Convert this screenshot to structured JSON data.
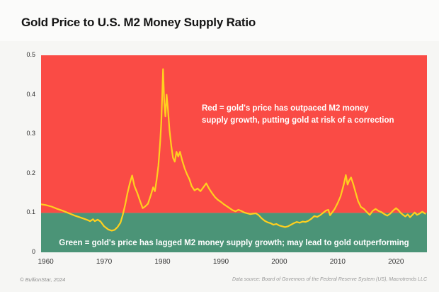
{
  "header": {
    "title": "Gold Price to U.S. M2 Money Supply Ratio"
  },
  "footer": {
    "copyright": "© BullionStar, 2024",
    "source": "Data source: Board of Governors of the Federal Reserve System (US), Macrotrends LLC"
  },
  "colors": {
    "red_zone": "#fa4b45",
    "green_zone": "#4b9477",
    "line": "#ffd01e",
    "background": "#f6f6f4"
  },
  "chart_data": {
    "type": "line",
    "title": "Gold Price to U.S. M2 Money Supply Ratio",
    "xlabel": "",
    "ylabel": "",
    "x_range": [
      1959.2,
      2025.3
    ],
    "y_range": [
      0,
      0.5
    ],
    "grid": false,
    "legend": "none",
    "threshold": 0.1,
    "x_ticks": [
      {
        "v": 1960,
        "label": "1960"
      },
      {
        "v": 1970,
        "label": "1970"
      },
      {
        "v": 1980,
        "label": "1980"
      },
      {
        "v": 1990,
        "label": "1990"
      },
      {
        "v": 2000,
        "label": "2000"
      },
      {
        "v": 2010,
        "label": "2010"
      },
      {
        "v": 2020,
        "label": "2020"
      }
    ],
    "y_ticks": [
      {
        "v": 0,
        "label": "0"
      },
      {
        "v": 0.1,
        "label": "0.1"
      },
      {
        "v": 0.2,
        "label": "0.2"
      },
      {
        "v": 0.3,
        "label": "0.3"
      },
      {
        "v": 0.4,
        "label": "0.4"
      },
      {
        "v": 0.5,
        "label": "0.5"
      }
    ],
    "regions": [
      {
        "name": "red-zone",
        "color": "#fa4b45",
        "from": 0.1,
        "to": 0.5,
        "annotation_line1": "Red = gold's price has outpaced M2 money",
        "annotation_line2": "supply growth, putting gold at risk of a correction"
      },
      {
        "name": "green-zone",
        "color": "#4b9477",
        "from": 0,
        "to": 0.1,
        "annotation": "Green = gold's price has lagged M2 money supply growth; may lead to gold outperforming"
      }
    ],
    "series": [
      {
        "name": "gold-to-m2-ratio",
        "color": "#ffd01e",
        "stroke_width": 2.2,
        "points": [
          [
            1959.2,
            0.122
          ],
          [
            1960,
            0.12
          ],
          [
            1961,
            0.116
          ],
          [
            1962,
            0.11
          ],
          [
            1963,
            0.105
          ],
          [
            1964,
            0.099
          ],
          [
            1965,
            0.093
          ],
          [
            1966,
            0.088
          ],
          [
            1967,
            0.083
          ],
          [
            1967.6,
            0.079
          ],
          [
            1968.1,
            0.084
          ],
          [
            1968.4,
            0.079
          ],
          [
            1968.9,
            0.083
          ],
          [
            1969.4,
            0.078
          ],
          [
            1970,
            0.066
          ],
          [
            1970.7,
            0.058
          ],
          [
            1971.3,
            0.055
          ],
          [
            1971.8,
            0.057
          ],
          [
            1972.3,
            0.064
          ],
          [
            1972.8,
            0.075
          ],
          [
            1973.2,
            0.095
          ],
          [
            1973.6,
            0.12
          ],
          [
            1974,
            0.15
          ],
          [
            1974.4,
            0.175
          ],
          [
            1974.8,
            0.195
          ],
          [
            1975.2,
            0.168
          ],
          [
            1975.7,
            0.15
          ],
          [
            1976.2,
            0.128
          ],
          [
            1976.6,
            0.112
          ],
          [
            1977,
            0.116
          ],
          [
            1977.5,
            0.123
          ],
          [
            1978,
            0.145
          ],
          [
            1978.4,
            0.165
          ],
          [
            1978.7,
            0.155
          ],
          [
            1979,
            0.185
          ],
          [
            1979.3,
            0.22
          ],
          [
            1979.6,
            0.28
          ],
          [
            1979.8,
            0.33
          ],
          [
            1980,
            0.42
          ],
          [
            1980.1,
            0.465
          ],
          [
            1980.3,
            0.38
          ],
          [
            1980.5,
            0.345
          ],
          [
            1980.7,
            0.4
          ],
          [
            1980.9,
            0.37
          ],
          [
            1981.2,
            0.31
          ],
          [
            1981.5,
            0.27
          ],
          [
            1981.8,
            0.24
          ],
          [
            1982.1,
            0.23
          ],
          [
            1982.4,
            0.255
          ],
          [
            1982.7,
            0.243
          ],
          [
            1983,
            0.255
          ],
          [
            1983.4,
            0.232
          ],
          [
            1983.8,
            0.213
          ],
          [
            1984.2,
            0.198
          ],
          [
            1984.6,
            0.186
          ],
          [
            1985,
            0.168
          ],
          [
            1985.5,
            0.157
          ],
          [
            1986,
            0.162
          ],
          [
            1986.5,
            0.155
          ],
          [
            1987,
            0.165
          ],
          [
            1987.5,
            0.175
          ],
          [
            1988,
            0.161
          ],
          [
            1988.5,
            0.15
          ],
          [
            1989,
            0.14
          ],
          [
            1989.5,
            0.133
          ],
          [
            1990,
            0.128
          ],
          [
            1990.5,
            0.122
          ],
          [
            1991,
            0.117
          ],
          [
            1991.5,
            0.112
          ],
          [
            1992,
            0.107
          ],
          [
            1992.5,
            0.104
          ],
          [
            1993,
            0.108
          ],
          [
            1993.5,
            0.105
          ],
          [
            1994,
            0.101
          ],
          [
            1994.5,
            0.099
          ],
          [
            1995,
            0.097
          ],
          [
            1995.5,
            0.098
          ],
          [
            1996,
            0.099
          ],
          [
            1996.5,
            0.094
          ],
          [
            1997,
            0.086
          ],
          [
            1997.5,
            0.08
          ],
          [
            1998,
            0.076
          ],
          [
            1998.5,
            0.074
          ],
          [
            1999,
            0.07
          ],
          [
            1999.5,
            0.072
          ],
          [
            2000,
            0.068
          ],
          [
            2000.5,
            0.066
          ],
          [
            2001,
            0.064
          ],
          [
            2001.5,
            0.066
          ],
          [
            2002,
            0.07
          ],
          [
            2002.5,
            0.074
          ],
          [
            2003,
            0.077
          ],
          [
            2003.5,
            0.075
          ],
          [
            2004,
            0.078
          ],
          [
            2004.5,
            0.077
          ],
          [
            2005,
            0.08
          ],
          [
            2005.5,
            0.085
          ],
          [
            2006,
            0.092
          ],
          [
            2006.5,
            0.09
          ],
          [
            2007,
            0.094
          ],
          [
            2007.5,
            0.1
          ],
          [
            2008,
            0.106
          ],
          [
            2008.4,
            0.108
          ],
          [
            2008.7,
            0.094
          ],
          [
            2009,
            0.1
          ],
          [
            2009.5,
            0.11
          ],
          [
            2010,
            0.125
          ],
          [
            2010.5,
            0.142
          ],
          [
            2010.8,
            0.158
          ],
          [
            2011.1,
            0.175
          ],
          [
            2011.4,
            0.196
          ],
          [
            2011.7,
            0.172
          ],
          [
            2012,
            0.183
          ],
          [
            2012.3,
            0.19
          ],
          [
            2012.7,
            0.172
          ],
          [
            2013,
            0.156
          ],
          [
            2013.5,
            0.13
          ],
          [
            2014,
            0.115
          ],
          [
            2014.5,
            0.11
          ],
          [
            2015,
            0.102
          ],
          [
            2015.5,
            0.095
          ],
          [
            2016,
            0.105
          ],
          [
            2016.5,
            0.11
          ],
          [
            2017,
            0.105
          ],
          [
            2017.5,
            0.102
          ],
          [
            2018,
            0.097
          ],
          [
            2018.5,
            0.093
          ],
          [
            2019,
            0.098
          ],
          [
            2019.5,
            0.106
          ],
          [
            2020,
            0.112
          ],
          [
            2020.4,
            0.107
          ],
          [
            2020.8,
            0.1
          ],
          [
            2021.2,
            0.095
          ],
          [
            2021.6,
            0.091
          ],
          [
            2022,
            0.096
          ],
          [
            2022.4,
            0.089
          ],
          [
            2022.8,
            0.095
          ],
          [
            2023.2,
            0.101
          ],
          [
            2023.6,
            0.095
          ],
          [
            2024,
            0.098
          ],
          [
            2024.5,
            0.103
          ],
          [
            2025,
            0.098
          ]
        ]
      }
    ]
  }
}
